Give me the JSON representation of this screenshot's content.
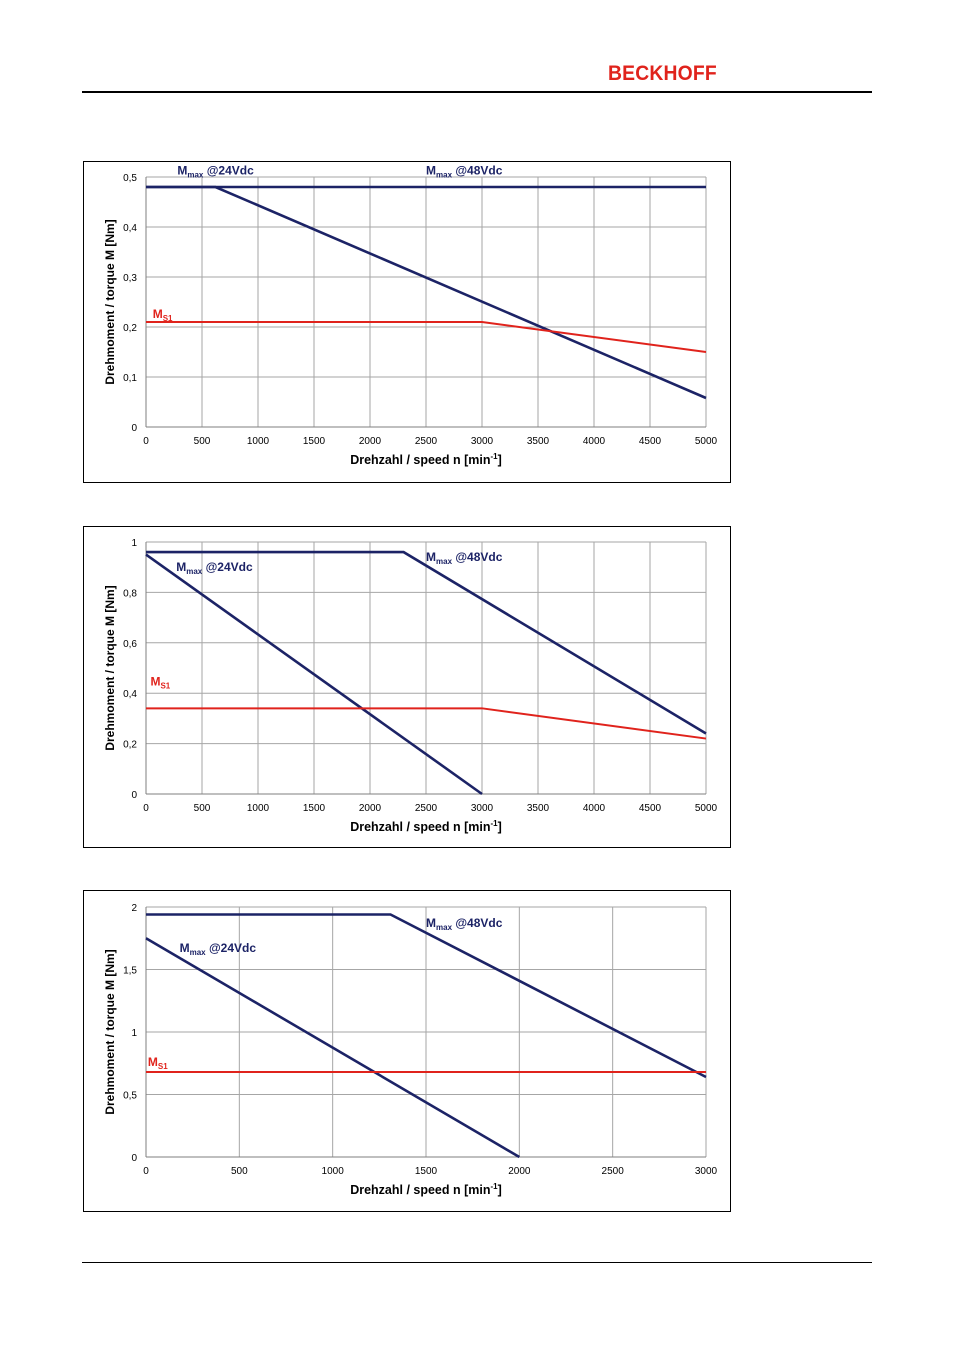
{
  "header": {
    "brand": "BECKHOFF"
  },
  "colors": {
    "mmax": "#1c2366",
    "ms1": "#e0231c",
    "grid": "#a6a6a6",
    "brand": "#e0231c"
  },
  "chart_data": [
    {
      "type": "line",
      "xlabel": "Drehzahl / speed n [min",
      "xlabel_sup": "-1",
      "xlabel_end": "]",
      "ylabel": "Drehmoment / torque M [Nm]",
      "xlim": [
        0,
        5000
      ],
      "ylim": [
        0,
        0.5
      ],
      "xticks": [
        0,
        500,
        1000,
        1500,
        2000,
        2500,
        3000,
        3500,
        4000,
        4500,
        5000
      ],
      "xtick_labels": [
        "0",
        "500",
        "1000",
        "1500",
        "2000",
        "2500",
        "3000",
        "3500",
        "4000",
        "4500",
        "5000"
      ],
      "yticks": [
        0,
        0.1,
        0.2,
        0.3,
        0.4,
        0.5
      ],
      "ytick_labels": [
        "0",
        "0,1",
        "0,2",
        "0,3",
        "0,4",
        "0,5"
      ],
      "grid": true,
      "series": [
        {
          "key": "mmax24",
          "color": "mmax",
          "x": [
            0,
            620,
            5000
          ],
          "y": [
            0.48,
            0.48,
            0.058
          ]
        },
        {
          "key": "mmax48",
          "color": "mmax",
          "x": [
            0,
            5000
          ],
          "y": [
            0.48,
            0.48
          ]
        },
        {
          "key": "ms1",
          "color": "ms1",
          "x": [
            0,
            3000,
            5000
          ],
          "y": [
            0.21,
            0.21,
            0.15
          ]
        }
      ],
      "annotations": [
        {
          "key": "mmax24",
          "text": "M",
          "sub": "max",
          "rest": " @24Vdc",
          "color": "mmax",
          "at_x": 280,
          "at_y": 0.505
        },
        {
          "key": "mmax48",
          "text": "M",
          "sub": "max",
          "rest": " @48Vdc",
          "color": "mmax",
          "at_x": 2500,
          "at_y": 0.505
        },
        {
          "key": "ms1",
          "text": "M",
          "sub": "S1",
          "rest": "",
          "color": "ms1",
          "at_x": 60,
          "at_y": 0.218
        }
      ]
    },
    {
      "type": "line",
      "xlabel": "Drehzahl / speed n [min",
      "xlabel_sup": "-1",
      "xlabel_end": "]",
      "ylabel": "Drehmoment / torque M [Nm]",
      "xlim": [
        0,
        5000
      ],
      "ylim": [
        0,
        1
      ],
      "xticks": [
        0,
        500,
        1000,
        1500,
        2000,
        2500,
        3000,
        3500,
        4000,
        4500,
        5000
      ],
      "xtick_labels": [
        "0",
        "500",
        "1000",
        "1500",
        "2000",
        "2500",
        "3000",
        "3500",
        "4000",
        "4500",
        "5000"
      ],
      "yticks": [
        0,
        0.2,
        0.4,
        0.6,
        0.8,
        1
      ],
      "ytick_labels": [
        "0",
        "0,2",
        "0,4",
        "0,6",
        "0,8",
        "1"
      ],
      "grid": true,
      "series": [
        {
          "key": "mmax24",
          "color": "mmax",
          "x": [
            0,
            3000
          ],
          "y": [
            0.95,
            0
          ]
        },
        {
          "key": "mmax48",
          "color": "mmax",
          "x": [
            0,
            2300,
            5000
          ],
          "y": [
            0.96,
            0.96,
            0.24
          ]
        },
        {
          "key": "ms1",
          "color": "ms1",
          "x": [
            0,
            3000,
            5000
          ],
          "y": [
            0.34,
            0.34,
            0.22
          ]
        }
      ],
      "annotations": [
        {
          "key": "mmax24",
          "text": "M",
          "sub": "max",
          "rest": " @24Vdc",
          "color": "mmax",
          "at_x": 270,
          "at_y": 0.885
        },
        {
          "key": "mmax48",
          "text": "M",
          "sub": "max",
          "rest": " @48Vdc",
          "color": "mmax",
          "at_x": 2500,
          "at_y": 0.925
        },
        {
          "key": "ms1",
          "text": "M",
          "sub": "S1",
          "rest": "",
          "color": "ms1",
          "at_x": 40,
          "at_y": 0.43
        }
      ]
    },
    {
      "type": "line",
      "xlabel": "Drehzahl / speed n [min",
      "xlabel_sup": "-1",
      "xlabel_end": "]",
      "ylabel": "Drehmoment / torque M [Nm]",
      "xlim": [
        0,
        3000
      ],
      "ylim": [
        0,
        2
      ],
      "xticks": [
        0,
        500,
        1000,
        1500,
        2000,
        2500,
        3000
      ],
      "xtick_labels": [
        "0",
        "500",
        "1000",
        "1500",
        "2000",
        "2500",
        "3000"
      ],
      "yticks": [
        0,
        0.5,
        1,
        1.5,
        2
      ],
      "ytick_labels": [
        "0",
        "0,5",
        "1",
        "1,5",
        "2"
      ],
      "grid": true,
      "series": [
        {
          "key": "mmax24",
          "color": "mmax",
          "x": [
            0,
            2000
          ],
          "y": [
            1.75,
            0
          ]
        },
        {
          "key": "mmax48",
          "color": "mmax",
          "x": [
            0,
            1310,
            3000
          ],
          "y": [
            1.94,
            1.94,
            0.64
          ]
        },
        {
          "key": "ms1",
          "color": "ms1",
          "x": [
            0,
            3000
          ],
          "y": [
            0.68,
            0.68
          ]
        }
      ],
      "annotations": [
        {
          "key": "mmax24",
          "text": "M",
          "sub": "max",
          "rest": " @24Vdc",
          "color": "mmax",
          "at_x": 180,
          "at_y": 1.64
        },
        {
          "key": "mmax48",
          "text": "M",
          "sub": "max",
          "rest": " @48Vdc",
          "color": "mmax",
          "at_x": 1500,
          "at_y": 1.84
        },
        {
          "key": "ms1",
          "text": "M",
          "sub": "S1",
          "rest": "",
          "color": "ms1",
          "at_x": 10,
          "at_y": 0.73
        }
      ]
    }
  ]
}
